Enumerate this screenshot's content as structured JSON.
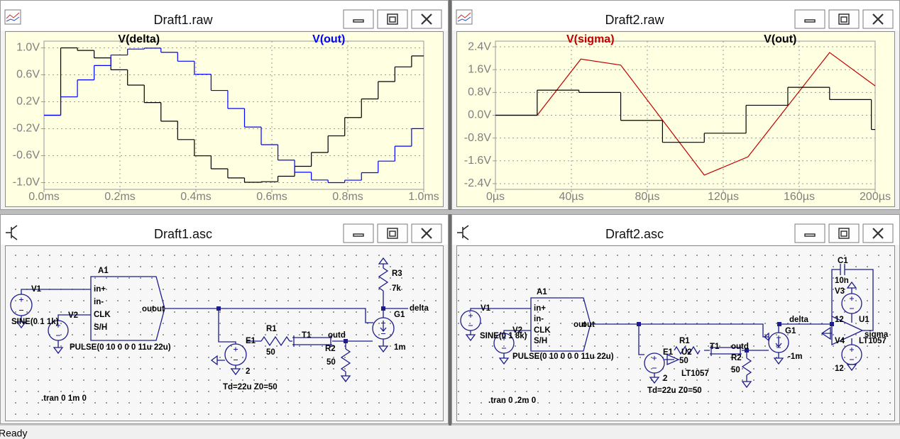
{
  "chart_data": [
    {
      "type": "line",
      "title": "Draft1.raw",
      "xlim": [
        0,
        1
      ],
      "ylim": [
        -1.1,
        1.1
      ],
      "xticks": [
        {
          "value": 0,
          "label": "0.0ms"
        },
        {
          "value": 0.2,
          "label": "0.2ms"
        },
        {
          "value": 0.4,
          "label": "0.4ms"
        },
        {
          "value": 0.6,
          "label": "0.6ms"
        },
        {
          "value": 0.8,
          "label": "0.8ms"
        },
        {
          "value": 1,
          "label": "1.0ms"
        }
      ],
      "yticks": [
        {
          "value": 1,
          "label": "1.0V"
        },
        {
          "value": 0.6,
          "label": "0.6V"
        },
        {
          "value": 0.2,
          "label": "0.2V"
        },
        {
          "value": -0.2,
          "label": "-0.2V"
        },
        {
          "value": -0.6,
          "label": "-0.6V"
        },
        {
          "value": -1,
          "label": "-1.0V"
        }
      ],
      "grid": true,
      "series": [
        {
          "name": "V(delta)",
          "color": "#000000",
          "step": true,
          "x": [
            0,
            0.044,
            0.088,
            0.132,
            0.176,
            0.22,
            0.264,
            0.308,
            0.352,
            0.396,
            0.44,
            0.484,
            0.528,
            0.572,
            0.616,
            0.66,
            0.704,
            0.748,
            0.792,
            0.836,
            0.88,
            0.924,
            0.968
          ],
          "values": [
            0,
            1.0,
            0.962,
            0.851,
            0.675,
            0.447,
            0.188,
            -0.088,
            -0.361,
            -0.602,
            -0.795,
            -0.93,
            -0.995,
            -0.986,
            -0.905,
            -0.758,
            -0.553,
            -0.306,
            -0.034,
            0.242,
            0.5,
            0.718,
            0.88
          ]
        },
        {
          "name": "V(out)",
          "color": "#0000ff",
          "step": true,
          "x": [
            0,
            0.044,
            0.088,
            0.132,
            0.176,
            0.22,
            0.264,
            0.308,
            0.352,
            0.396,
            0.44,
            0.484,
            0.528,
            0.572,
            0.616,
            0.66,
            0.704,
            0.748,
            0.792,
            0.836,
            0.88,
            0.924,
            0.968
          ],
          "values": [
            0,
            0.273,
            0.525,
            0.738,
            0.894,
            0.982,
            0.996,
            0.934,
            0.802,
            0.608,
            0.368,
            0.1,
            -0.175,
            -0.437,
            -0.666,
            -0.846,
            -0.961,
            -1.0,
            -0.964,
            -0.853,
            -0.681,
            -0.459,
            -0.199
          ]
        }
      ]
    },
    {
      "type": "line",
      "title": "Draft2.raw",
      "xlim": [
        0,
        200
      ],
      "ylim": [
        -2.6,
        2.6
      ],
      "xticks": [
        {
          "value": 0,
          "label": "0µs"
        },
        {
          "value": 40,
          "label": "40µs"
        },
        {
          "value": 80,
          "label": "80µs"
        },
        {
          "value": 120,
          "label": "120µs"
        },
        {
          "value": 160,
          "label": "160µs"
        },
        {
          "value": 200,
          "label": "200µs"
        }
      ],
      "yticks": [
        {
          "value": 2.4,
          "label": "2.4V"
        },
        {
          "value": 1.6,
          "label": "1.6V"
        },
        {
          "value": 0.8,
          "label": "0.8V"
        },
        {
          "value": 0,
          "label": "0.0V"
        },
        {
          "value": -0.8,
          "label": "-0.8V"
        },
        {
          "value": -1.6,
          "label": "-1.6V"
        },
        {
          "value": -2.4,
          "label": "-2.4V"
        }
      ],
      "grid": true,
      "series": [
        {
          "name": "V(sigma)",
          "color": "#c00000",
          "step": false,
          "x": [
            0,
            22,
            45,
            66,
            110,
            133,
            176,
            200
          ],
          "values": [
            0,
            0,
            1.97,
            1.76,
            -2.1,
            -1.46,
            2.2,
            1.03
          ]
        },
        {
          "name": "V(out)",
          "color": "#000000",
          "step": true,
          "x": [
            0,
            22,
            44,
            66,
            88,
            110,
            132,
            154,
            176,
            198
          ],
          "values": [
            0,
            0.88,
            0.8,
            -0.18,
            -0.95,
            -0.63,
            0.35,
            0.98,
            0.55,
            -0.5
          ]
        }
      ]
    }
  ],
  "schematics": [
    {
      "title": "Draft1.asc",
      "labels": [
        "A1",
        "in+",
        "in-",
        "CLK",
        "S/H",
        "out",
        "out",
        "V1",
        "V2",
        "SINE(0 1 1k)",
        "PULSE(0 10 0 0 0 11u 22u)",
        "E1",
        "2",
        "R1",
        "50",
        "T1",
        "outd",
        "R2",
        "50",
        "Td=22u Z0=50",
        "R3",
        "7k",
        "G1",
        "delta",
        "1m",
        ".tran 0 1m 0"
      ]
    },
    {
      "title": "Draft2.asc",
      "labels": [
        "C1",
        "10n",
        "V3",
        "U1",
        "12",
        "sigma",
        "LT1057",
        "V4",
        "12",
        "delta",
        "G1",
        "-1m",
        "A1",
        "in+",
        "in-",
        "CLK",
        "S/H",
        "out",
        "out",
        "V1",
        "V2",
        "SINE(0 1 8k)",
        "PULSE(0 10 0 0 0 11u 22u)",
        "E1",
        "2",
        "R1",
        "50",
        "U2",
        "LT1057",
        "T1",
        "outd",
        "R2",
        "50",
        "Td=22u Z0=50",
        ".tran 0 .2m 0"
      ]
    }
  ],
  "status_bar": "Ready"
}
